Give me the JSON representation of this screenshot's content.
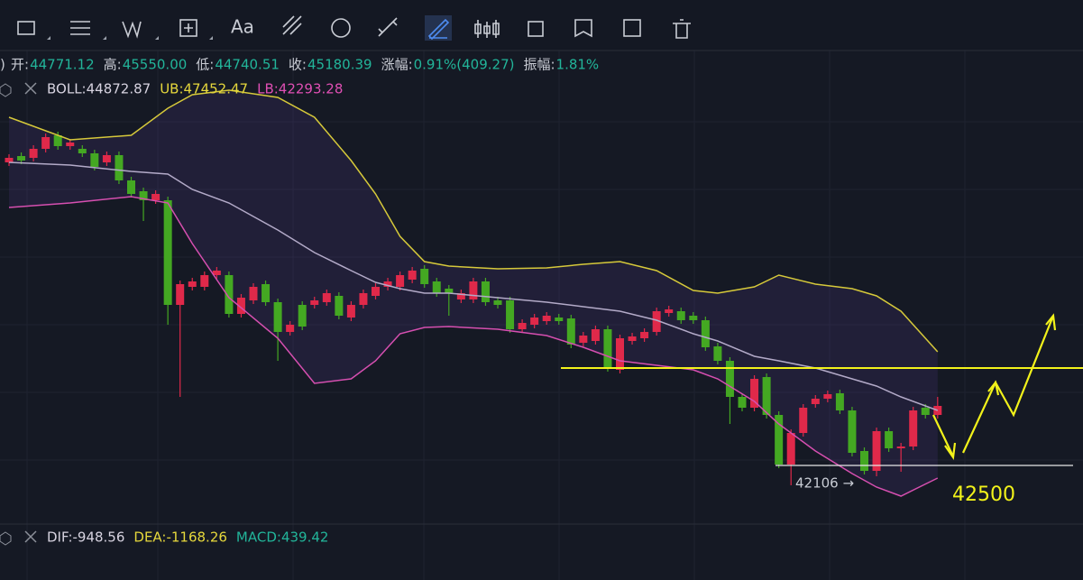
{
  "toolbar": {
    "text_tool": "Aa"
  },
  "quote_line": [
    {
      "label": "开:",
      "value": "44771.12"
    },
    {
      "label": "高:",
      "value": "45550.00"
    },
    {
      "label": "低:",
      "value": "44740.51"
    },
    {
      "label": "收:",
      "value": "45180.39"
    },
    {
      "label": "涨幅:",
      "value": "0.91%(409.27)"
    },
    {
      "label": "振幅:",
      "value": "1.81%"
    }
  ],
  "boll_legend": [
    {
      "text": "BOLL:44872.87",
      "color": "#d7d3e0"
    },
    {
      "text": "UB:47452.47",
      "color": "#e6d83c"
    },
    {
      "text": "LB:42293.28",
      "color": "#e04fb4"
    }
  ],
  "macd_legend": [
    {
      "text": "DIF:-948.56",
      "color": "#d7d3e0"
    },
    {
      "text": "DEA:-1168.26",
      "color": "#e6d83c"
    },
    {
      "text": "MACD:439.42",
      "color": "#22b59a"
    }
  ],
  "chart_data": {
    "type": "candlestick",
    "up_color": "#e0294a",
    "down_color": "#44a822",
    "ylim": [
      41900,
      46900
    ],
    "candles": [
      [
        45900,
        45990,
        45860,
        45950
      ],
      [
        45970,
        46010,
        45880,
        45920
      ],
      [
        45950,
        46090,
        45910,
        46050
      ],
      [
        46050,
        46220,
        46010,
        46180
      ],
      [
        46200,
        46240,
        46040,
        46080
      ],
      [
        46080,
        46160,
        46040,
        46120
      ],
      [
        46050,
        46090,
        45960,
        46000
      ],
      [
        46000,
        46040,
        45810,
        45850
      ],
      [
        45900,
        46020,
        45860,
        45980
      ],
      [
        45980,
        46020,
        45660,
        45700
      ],
      [
        45700,
        45740,
        45510,
        45550
      ],
      [
        45580,
        45620,
        45250,
        45480
      ],
      [
        45480,
        45590,
        45440,
        45550
      ],
      [
        45480,
        45520,
        44100,
        44320
      ],
      [
        44320,
        44590,
        43300,
        44550
      ],
      [
        44520,
        44620,
        44480,
        44580
      ],
      [
        44520,
        44690,
        44480,
        44650
      ],
      [
        44650,
        44740,
        44610,
        44700
      ],
      [
        44650,
        44690,
        44180,
        44220
      ],
      [
        44220,
        44440,
        44180,
        44400
      ],
      [
        44370,
        44560,
        44330,
        44520
      ],
      [
        44550,
        44590,
        44310,
        44350
      ],
      [
        44350,
        44390,
        43700,
        44020
      ],
      [
        44020,
        44140,
        43980,
        44100
      ],
      [
        44320,
        44360,
        44040,
        44080
      ],
      [
        44320,
        44410,
        44280,
        44370
      ],
      [
        44350,
        44490,
        44310,
        44450
      ],
      [
        44420,
        44460,
        44160,
        44200
      ],
      [
        44180,
        44360,
        44140,
        44320
      ],
      [
        44320,
        44490,
        44280,
        44450
      ],
      [
        44420,
        44560,
        44380,
        44520
      ],
      [
        44520,
        44620,
        44480,
        44580
      ],
      [
        44520,
        44690,
        44480,
        44650
      ],
      [
        44600,
        44740,
        44560,
        44700
      ],
      [
        44720,
        44760,
        44510,
        44550
      ],
      [
        44580,
        44620,
        44410,
        44450
      ],
      [
        44500,
        44540,
        44200,
        44450
      ],
      [
        44380,
        44490,
        44340,
        44450
      ],
      [
        44380,
        44620,
        44340,
        44580
      ],
      [
        44580,
        44620,
        44310,
        44350
      ],
      [
        44370,
        44410,
        44280,
        44320
      ],
      [
        44370,
        44410,
        44010,
        44050
      ],
      [
        44050,
        44160,
        44010,
        44120
      ],
      [
        44100,
        44220,
        44060,
        44180
      ],
      [
        44140,
        44240,
        44100,
        44200
      ],
      [
        44180,
        44220,
        44100,
        44140
      ],
      [
        44170,
        44210,
        43840,
        43880
      ],
      [
        43900,
        44020,
        43860,
        43980
      ],
      [
        43920,
        44090,
        43880,
        44050
      ],
      [
        44050,
        44090,
        43580,
        43620
      ],
      [
        43600,
        43990,
        43560,
        43950
      ],
      [
        43920,
        44010,
        43880,
        43970
      ],
      [
        43950,
        44060,
        43910,
        44020
      ],
      [
        44020,
        44290,
        43980,
        44250
      ],
      [
        44230,
        44310,
        44190,
        44270
      ],
      [
        44250,
        44290,
        44110,
        44150
      ],
      [
        44200,
        44240,
        44110,
        44150
      ],
      [
        44150,
        44190,
        43810,
        43850
      ],
      [
        43860,
        43900,
        43660,
        43700
      ],
      [
        43700,
        43740,
        43000,
        43300
      ],
      [
        43300,
        43340,
        43140,
        43180
      ],
      [
        43180,
        43540,
        43140,
        43500
      ],
      [
        43520,
        43560,
        43060,
        43100
      ],
      [
        43100,
        43140,
        42510,
        42550
      ],
      [
        42550,
        42940,
        42320,
        42900
      ],
      [
        42900,
        43220,
        42860,
        43180
      ],
      [
        43220,
        43320,
        43180,
        43280
      ],
      [
        43280,
        43370,
        43240,
        43330
      ],
      [
        43340,
        43380,
        43110,
        43150
      ],
      [
        43150,
        43190,
        42640,
        42680
      ],
      [
        42700,
        42740,
        42440,
        42480
      ],
      [
        42480,
        42960,
        42420,
        42920
      ],
      [
        42920,
        42960,
        42690,
        42730
      ],
      [
        42730,
        42790,
        42470,
        42750
      ],
      [
        42750,
        43190,
        42710,
        43150
      ],
      [
        43180,
        43220,
        43060,
        43100
      ],
      [
        43100,
        43300,
        43060,
        43200
      ]
    ],
    "band_fill": "rgba(90,60,150,0.18)",
    "series": [
      {
        "color": "#d6c93a",
        "x": [
          0,
          5,
          10,
          13,
          15,
          18,
          22,
          25,
          28,
          30,
          32,
          34,
          36,
          40,
          44,
          47,
          50,
          53,
          56,
          58,
          61,
          63,
          66,
          69,
          71,
          73,
          76
        ],
        "values": [
          46400,
          46150,
          46200,
          46500,
          46650,
          46700,
          46620,
          46400,
          45920,
          45550,
          45080,
          44800,
          44750,
          44720,
          44730,
          44770,
          44800,
          44700,
          44480,
          44450,
          44520,
          44650,
          44550,
          44500,
          44420,
          44250,
          43800
        ]
      },
      {
        "color": "#b3aac8",
        "x": [
          0,
          5,
          10,
          13,
          15,
          18,
          22,
          25,
          28,
          30,
          32,
          34,
          36,
          40,
          44,
          47,
          50,
          53,
          56,
          58,
          61,
          63,
          66,
          69,
          71,
          73,
          76
        ],
        "values": [
          45900,
          45870,
          45800,
          45770,
          45600,
          45450,
          45150,
          44900,
          44700,
          44570,
          44500,
          44450,
          44450,
          44400,
          44350,
          44300,
          44250,
          44150,
          44000,
          43920,
          43750,
          43700,
          43620,
          43500,
          43420,
          43300,
          43150
        ]
      },
      {
        "color": "#d64fb0",
        "x": [
          0,
          5,
          10,
          13,
          15,
          18,
          22,
          25,
          28,
          30,
          32,
          34,
          36,
          40,
          44,
          47,
          50,
          53,
          56,
          58,
          61,
          63,
          66,
          69,
          71,
          73,
          76
        ],
        "values": [
          45400,
          45450,
          45520,
          45450,
          45000,
          44400,
          43950,
          43450,
          43500,
          43700,
          44000,
          44070,
          44080,
          44050,
          43980,
          43850,
          43700,
          43650,
          43600,
          43500,
          43250,
          43000,
          42700,
          42450,
          42300,
          42200,
          42400
        ]
      }
    ],
    "annotations": [
      {
        "text": "42106 →",
        "color": "#c8ccd4"
      },
      {
        "text": "42500",
        "color": "#f2f21a"
      }
    ]
  }
}
